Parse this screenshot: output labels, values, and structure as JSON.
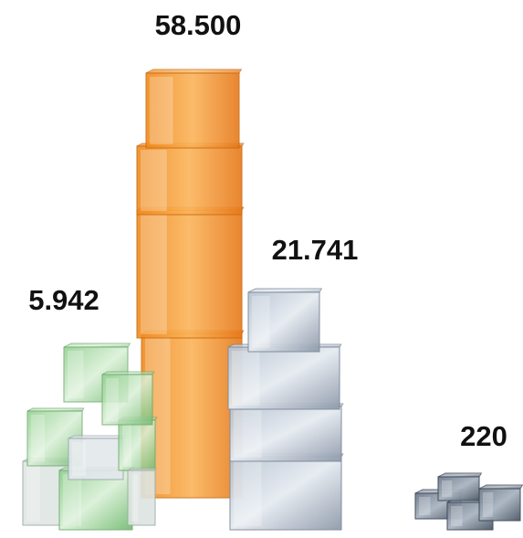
{
  "labels": [
    "58.500",
    "21.741",
    "5.942",
    "220"
  ]
}
